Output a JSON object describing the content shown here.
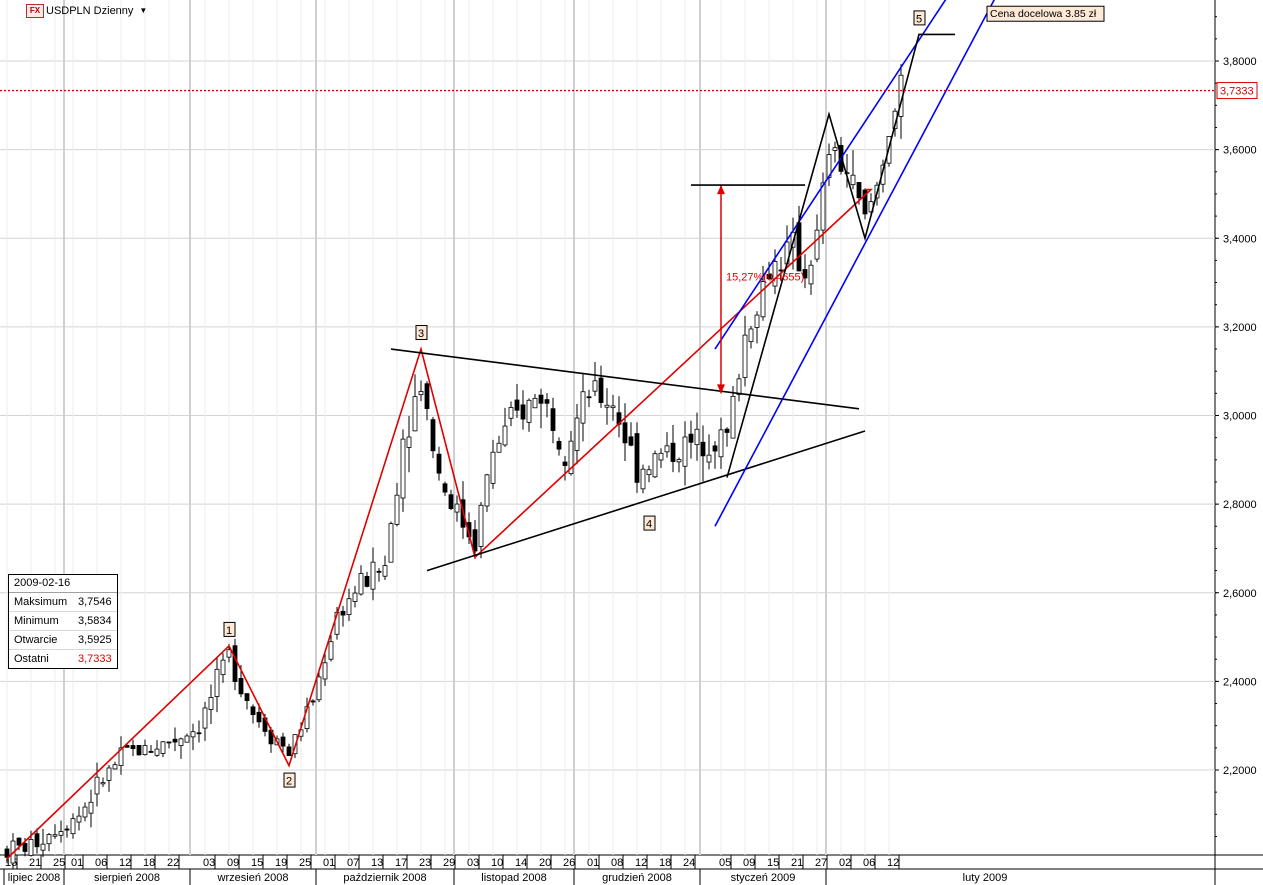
{
  "header": {
    "logo_text": "FX",
    "title": "USDPLN Dzienny",
    "dropdown_icon": "triangle-down-icon"
  },
  "info_box": {
    "date": "2009-02-16",
    "rows": [
      {
        "label": "Maksimum",
        "value": "3,7546",
        "highlight": false
      },
      {
        "label": "Minimum",
        "value": "3,5834",
        "highlight": false
      },
      {
        "label": "Otwarcie",
        "value": "3,5925",
        "highlight": false
      },
      {
        "label": "Ostatni",
        "value": "3,7333",
        "highlight": true
      }
    ]
  },
  "chart_data": {
    "type": "candlestick",
    "symbol": "USDPLN",
    "interval": "Dzienny",
    "ylim": [
      2.0,
      3.95
    ],
    "y_ticks": [
      {
        "value": 2.2,
        "label": "2,2000"
      },
      {
        "value": 2.4,
        "label": "2,4000"
      },
      {
        "value": 2.6,
        "label": "2,6000"
      },
      {
        "value": 2.8,
        "label": "2,8000"
      },
      {
        "value": 3.0,
        "label": "3,0000"
      },
      {
        "value": 3.2,
        "label": "3,2000"
      },
      {
        "value": 3.4,
        "label": "3,4000"
      },
      {
        "value": 3.6,
        "label": "3,6000"
      },
      {
        "value": 3.8,
        "label": "3,8000"
      }
    ],
    "last_price": {
      "value": 3.7333,
      "label": "3,7333"
    },
    "x_day_ticks": [
      {
        "bar": 0,
        "label": "15"
      },
      {
        "bar": 4,
        "label": "21"
      },
      {
        "bar": 8,
        "label": "25"
      },
      {
        "bar": 11,
        "label": "01"
      },
      {
        "bar": 15,
        "label": "06"
      },
      {
        "bar": 19,
        "label": "12"
      },
      {
        "bar": 23,
        "label": "18"
      },
      {
        "bar": 27,
        "label": "22"
      },
      {
        "bar": 33,
        "label": "03"
      },
      {
        "bar": 37,
        "label": "09"
      },
      {
        "bar": 41,
        "label": "15"
      },
      {
        "bar": 45,
        "label": "19"
      },
      {
        "bar": 49,
        "label": "25"
      },
      {
        "bar": 53,
        "label": "01"
      },
      {
        "bar": 57,
        "label": "07"
      },
      {
        "bar": 61,
        "label": "13"
      },
      {
        "bar": 65,
        "label": "17"
      },
      {
        "bar": 69,
        "label": "23"
      },
      {
        "bar": 73,
        "label": "29"
      },
      {
        "bar": 77,
        "label": "03"
      },
      {
        "bar": 81,
        "label": "10"
      },
      {
        "bar": 85,
        "label": "14"
      },
      {
        "bar": 89,
        "label": "20"
      },
      {
        "bar": 93,
        "label": "26"
      },
      {
        "bar": 97,
        "label": "01"
      },
      {
        "bar": 101,
        "label": "08"
      },
      {
        "bar": 105,
        "label": "12"
      },
      {
        "bar": 109,
        "label": "18"
      },
      {
        "bar": 113,
        "label": "24"
      },
      {
        "bar": 119,
        "label": "05"
      },
      {
        "bar": 123,
        "label": "09"
      },
      {
        "bar": 127,
        "label": "15"
      },
      {
        "bar": 131,
        "label": "21"
      },
      {
        "bar": 135,
        "label": "27"
      },
      {
        "bar": 139,
        "label": "02"
      },
      {
        "bar": 143,
        "label": "06"
      },
      {
        "bar": 147,
        "label": "12"
      }
    ],
    "month_labels": [
      {
        "label": "lipiec 2008",
        "start": 0,
        "end": 10
      },
      {
        "label": "sierpień 2008",
        "start": 10,
        "end": 31
      },
      {
        "label": "wrzesień 2008",
        "start": 31,
        "end": 52
      },
      {
        "label": "październik 2008",
        "start": 52,
        "end": 75
      },
      {
        "label": "listopad 2008",
        "start": 75,
        "end": 95
      },
      {
        "label": "grudzień 2008",
        "start": 95,
        "end": 116
      },
      {
        "label": "styczeń 2009",
        "start": 116,
        "end": 137
      },
      {
        "label": "luty 2009",
        "start": 137,
        "end": 190
      }
    ],
    "x_bar_count_visible": 190,
    "wave_labels": [
      {
        "label": "1",
        "bar": 37,
        "price": 2.515
      },
      {
        "label": "2",
        "bar": 47,
        "price": 2.175
      },
      {
        "label": "3",
        "bar": 69,
        "price": 3.185
      },
      {
        "label": "4",
        "bar": 107,
        "price": 2.755
      },
      {
        "label": "5",
        "bar": 152,
        "price": 3.895
      }
    ],
    "target_label": {
      "text": "Cena docelowa 3.85 zł",
      "bar": 158,
      "price": 3.892
    },
    "measurement": {
      "text": "15,27%(0,4655)",
      "bar": 119,
      "from_price": 3.05,
      "to_price": 3.52,
      "top_line_from_bar": 114,
      "top_line_to_bar": 133
    },
    "lines": [
      {
        "name": "elliott-wave-line",
        "color": "#e00000",
        "points": [
          [
            0,
            2.0
          ],
          [
            37,
            2.48
          ],
          [
            47,
            2.21
          ],
          [
            69,
            3.15
          ],
          [
            78,
            2.68
          ],
          [
            144,
            3.51
          ],
          [
            143,
            3.51
          ]
        ]
      },
      {
        "name": "triangle-upper-line",
        "color": "#000000",
        "points": [
          [
            64,
            3.15
          ],
          [
            142,
            3.015
          ]
        ]
      },
      {
        "name": "triangle-lower-line",
        "color": "#000000",
        "points": [
          [
            70,
            2.65
          ],
          [
            143,
            2.965
          ]
        ]
      },
      {
        "name": "channel-upper-line",
        "color": "#0000ff",
        "points": [
          [
            118,
            3.15
          ],
          [
            157,
            3.95
          ]
        ]
      },
      {
        "name": "channel-middle-line",
        "color": "#0000ff",
        "points": [
          [
            118,
            2.75
          ],
          [
            165,
            3.95
          ]
        ]
      },
      {
        "name": "wave-c-black-line",
        "color": "#000000",
        "points": [
          [
            120,
            2.86
          ],
          [
            137,
            3.68
          ],
          [
            143,
            3.4
          ],
          [
            152,
            3.86
          ],
          [
            158,
            3.86
          ]
        ]
      }
    ]
  }
}
